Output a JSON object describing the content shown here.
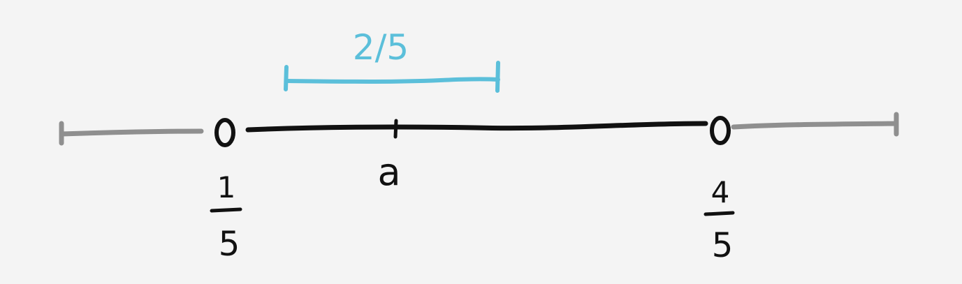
{
  "diagram": {
    "interval_label": "2/5",
    "point_label": "a",
    "left_endpoint": {
      "numerator": "1",
      "denominator": "5"
    },
    "right_endpoint": {
      "numerator": "4",
      "denominator": "5"
    }
  },
  "colors": {
    "background": "#f4f4f4",
    "main_line": "#111111",
    "outer_line": "#8f8f8f",
    "interval": "#5bbfda"
  }
}
